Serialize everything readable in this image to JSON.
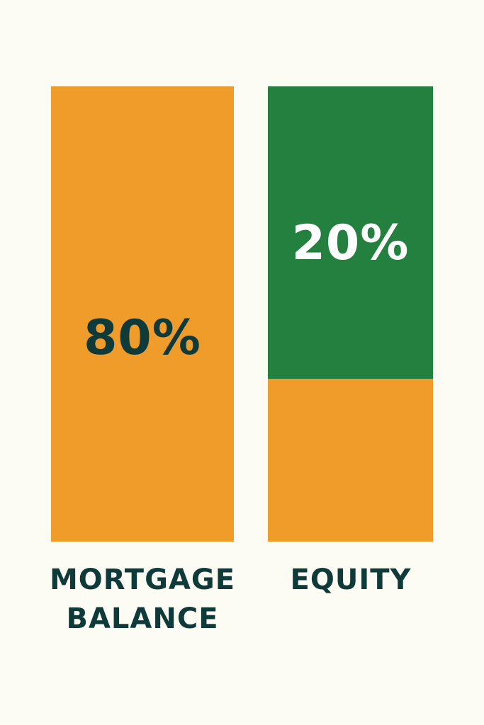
{
  "chart_data": {
    "type": "bar",
    "title": "",
    "categories": [
      "MORTGAGE BALANCE",
      "EQUITY"
    ],
    "values": [
      80,
      20
    ],
    "value_labels": [
      "80%",
      "20%"
    ],
    "label_lines": [
      [
        "MORTGAGE",
        "BALANCE"
      ],
      [
        "EQUITY"
      ]
    ],
    "unit": "%",
    "grid": false,
    "axes_visible": false,
    "colors": {
      "mortgage": "#f09c2b",
      "equity": "#24803f",
      "label_text": "#0e3b3a",
      "equity_label_text": "#ffffff",
      "background": "#fcfbf4"
    }
  }
}
